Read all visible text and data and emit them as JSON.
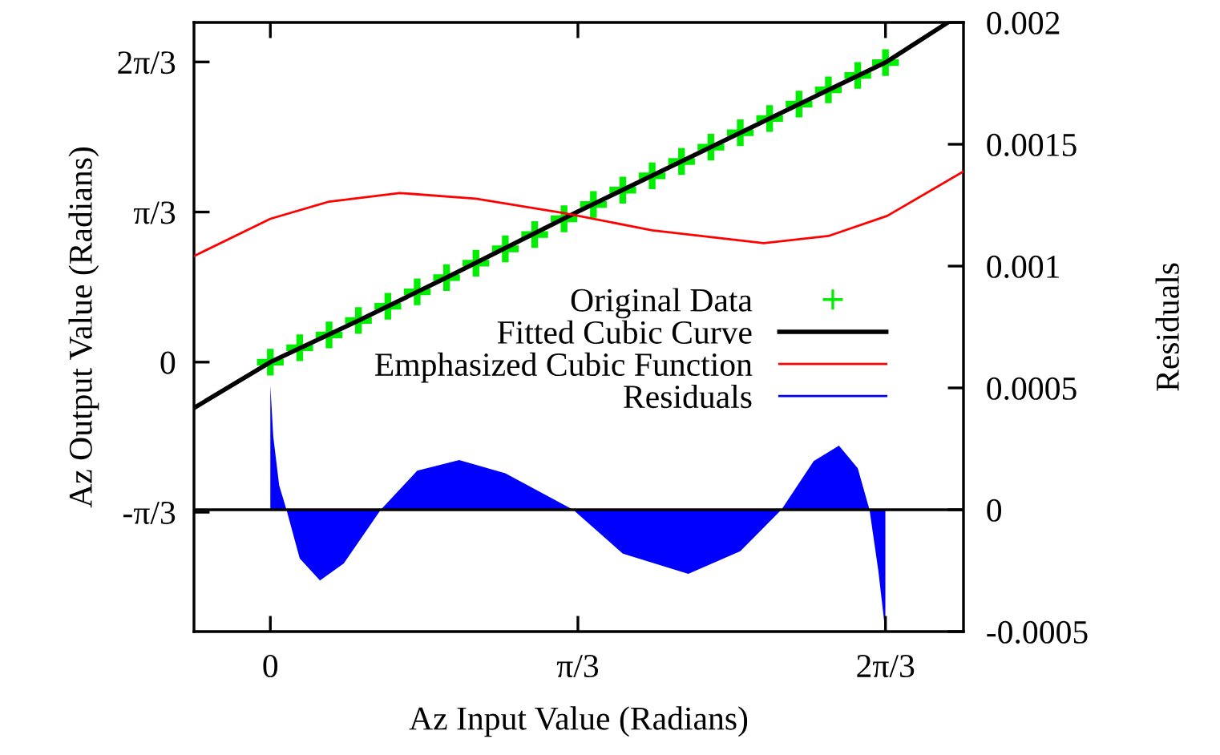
{
  "chart_data": {
    "type": "line",
    "xlabel": "Az Input Value (Radians)",
    "ylabel": "Az Output Value (Radians)",
    "y2label": "Residuals",
    "xlim": [
      -0.26,
      2.36
    ],
    "ylim": [
      -1.88,
      2.37
    ],
    "y2lim": [
      -0.0005,
      0.002
    ],
    "xticks": [
      0,
      {
        "value": 1.0472,
        "label": "π/3"
      },
      {
        "value": 2.0944,
        "label": "2π/3"
      }
    ],
    "yticks": [
      {
        "value": -1.0472,
        "label": "-π/3"
      },
      0,
      {
        "value": 1.0472,
        "label": "π/3"
      },
      {
        "value": 2.0944,
        "label": "2π/3"
      }
    ],
    "y2ticks": [
      {
        "value": -0.0005,
        "label": "-0.0005"
      },
      0,
      {
        "value": 0.0005,
        "label": "0.0005"
      },
      {
        "value": 0.001,
        "label": "0.001"
      },
      {
        "value": 0.0015,
        "label": "0.0015"
      },
      {
        "value": 0.002,
        "label": "0.002"
      }
    ],
    "grid": false,
    "legend": "right",
    "ref_lines": [
      {
        "axis": "y2",
        "value": 0,
        "color": "#000000"
      }
    ],
    "series": [
      {
        "name": "Original Data",
        "type": "scatter",
        "marker": "cross",
        "color": "#00ee00",
        "x": [
          0,
          0.1,
          0.2,
          0.3,
          0.4,
          0.5,
          0.6,
          0.7,
          0.8,
          0.9,
          1.0,
          1.1,
          1.2,
          1.3,
          1.4,
          1.5,
          1.6,
          1.7,
          1.8,
          1.9,
          2.0,
          2.0944
        ],
        "values": [
          0.0,
          0.1,
          0.19,
          0.29,
          0.39,
          0.49,
          0.59,
          0.69,
          0.79,
          0.89,
          1.0,
          1.1,
          1.2,
          1.3,
          1.4,
          1.5,
          1.6,
          1.7,
          1.8,
          1.9,
          2.0,
          2.09
        ]
      },
      {
        "name": "Fitted Cubic Curve",
        "color": "#000000",
        "x": [
          -0.26,
          0,
          0.3,
          0.6,
          1.047,
          1.5,
          1.8,
          2.094,
          2.307
        ],
        "values": [
          -0.32,
          0.0,
          0.29,
          0.59,
          1.05,
          1.5,
          1.8,
          2.09,
          2.37
        ]
      },
      {
        "name": "Emphasized Cubic Function",
        "color": "#ff0000",
        "x": [
          -0.26,
          0,
          0.2,
          0.44,
          0.7,
          1.0,
          1.3,
          1.68,
          1.9,
          2.1,
          2.36
        ],
        "values": [
          0.74,
          1.0,
          1.12,
          1.18,
          1.14,
          1.04,
          0.92,
          0.83,
          0.88,
          1.02,
          1.33
        ]
      },
      {
        "name": "Residuals",
        "type": "area",
        "axis": "y2",
        "color": "#0000ff",
        "x": [
          0,
          0.01,
          0.03,
          0.055,
          0.1,
          0.169,
          0.25,
          0.376,
          0.5,
          0.643,
          0.8,
          1.031,
          1.2,
          1.423,
          1.6,
          1.74,
          1.85,
          1.936,
          2.0,
          2.04,
          2.07,
          2.094
        ],
        "values": [
          0.00051,
          0.0003,
          0.0001,
          0,
          -0.0002,
          -0.00029,
          -0.00022,
          0,
          0.00016,
          0.000204,
          0.00015,
          0,
          -0.00018,
          -0.000263,
          -0.00017,
          0,
          0.0002,
          0.000263,
          0.00017,
          0,
          -0.00025,
          -0.0005
        ]
      }
    ]
  }
}
